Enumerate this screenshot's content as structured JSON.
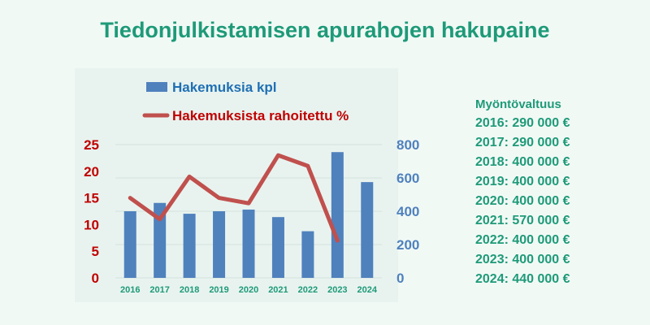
{
  "title": "Tiedonjulkistamisen apurahojen hakupaine",
  "colors": {
    "background": "#f1f9f5",
    "plot_background": "#e8f3ef",
    "title": "#1e9a78",
    "bar": "#4f81bd",
    "line": "#c0504d",
    "left_axis": "#c00000",
    "right_axis": "#4f81bd",
    "x_axis": "#1e9a78"
  },
  "chart_data": {
    "type": "bar",
    "categories": [
      "2016",
      "2017",
      "2018",
      "2019",
      "2020",
      "2021",
      "2022",
      "2023",
      "2024"
    ],
    "series": [
      {
        "name": "Hakemuksia kpl",
        "type": "bar",
        "axis": "right",
        "values": [
          400,
          450,
          385,
          400,
          410,
          365,
          280,
          755,
          575
        ]
      },
      {
        "name": "Hakemuksista rahoitettu %",
        "type": "line",
        "axis": "left",
        "values": [
          15,
          11,
          19,
          15,
          14,
          23,
          21,
          7,
          null
        ]
      }
    ],
    "left_axis": {
      "ylim": [
        0,
        25
      ],
      "ticks": [
        "0",
        "5",
        "10",
        "15",
        "20",
        "25"
      ]
    },
    "right_axis": {
      "ylim": [
        0,
        800
      ],
      "ticks": [
        "0",
        "200",
        "400",
        "600",
        "800"
      ]
    },
    "grid": true,
    "legend": "top-left"
  },
  "sidebar": {
    "title": "Myöntövaltuus",
    "rows": [
      "2016: 290 000 €",
      "2017: 290 000 €",
      "2018: 400 000 €",
      "2019: 400 000 €",
      "2020: 400 000 €",
      "2021: 570 000 €",
      "2022: 400 000 €",
      "2023: 400 000 €",
      "2024: 440 000 €"
    ]
  }
}
